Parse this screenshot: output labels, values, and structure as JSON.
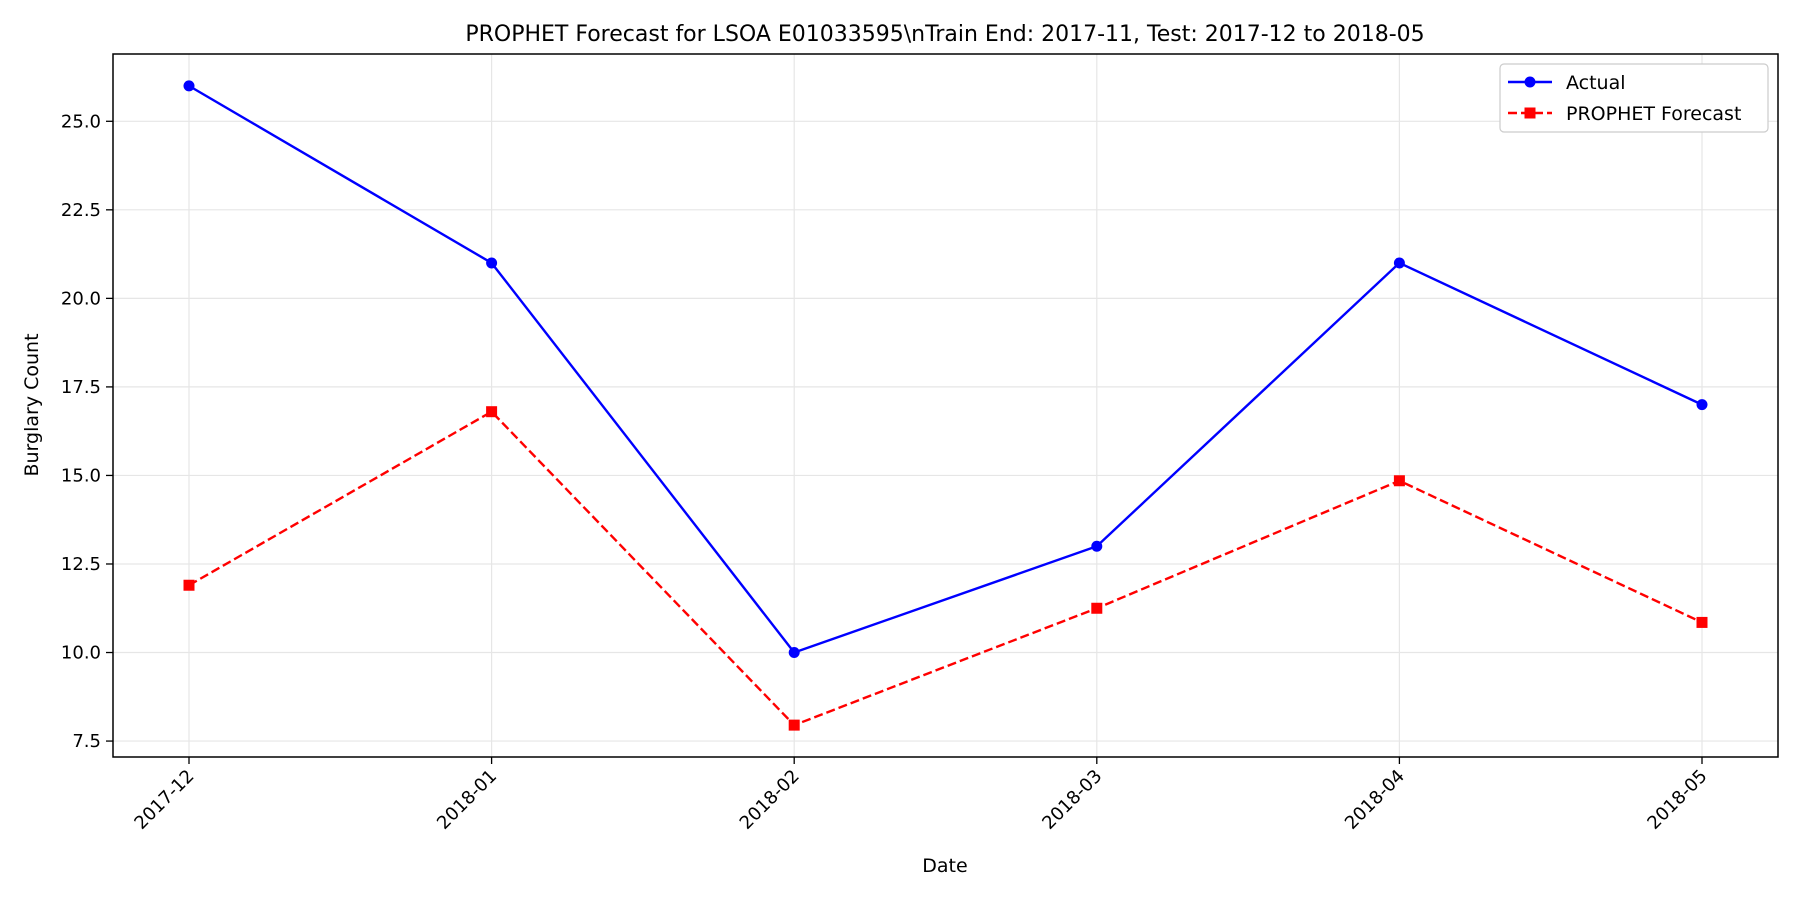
{
  "chart_data": {
    "type": "line",
    "title": "PROPHET Forecast for LSOA E01033595\\nTrain End: 2017-11, Test: 2017-12 to 2018-05",
    "xlabel": "Date",
    "ylabel": "Burglary Count",
    "x": [
      "2017-12",
      "2018-01",
      "2018-02",
      "2018-03",
      "2018-04",
      "2018-05"
    ],
    "ylim": [
      7.05,
      26.9
    ],
    "yticks": [
      7.5,
      10.0,
      12.5,
      15.0,
      17.5,
      20.0,
      22.5,
      25.0
    ],
    "grid": true,
    "legend_position": "top-right",
    "series": [
      {
        "name": "Actual",
        "values": [
          26,
          21,
          10,
          13,
          21,
          17
        ],
        "color": "#0000ff",
        "style": "solid",
        "marker": "circle"
      },
      {
        "name": "PROPHET Forecast",
        "values": [
          11.9,
          16.8,
          7.95,
          11.25,
          14.85,
          10.85
        ],
        "color": "#ff0000",
        "style": "dashed",
        "marker": "square"
      }
    ]
  }
}
